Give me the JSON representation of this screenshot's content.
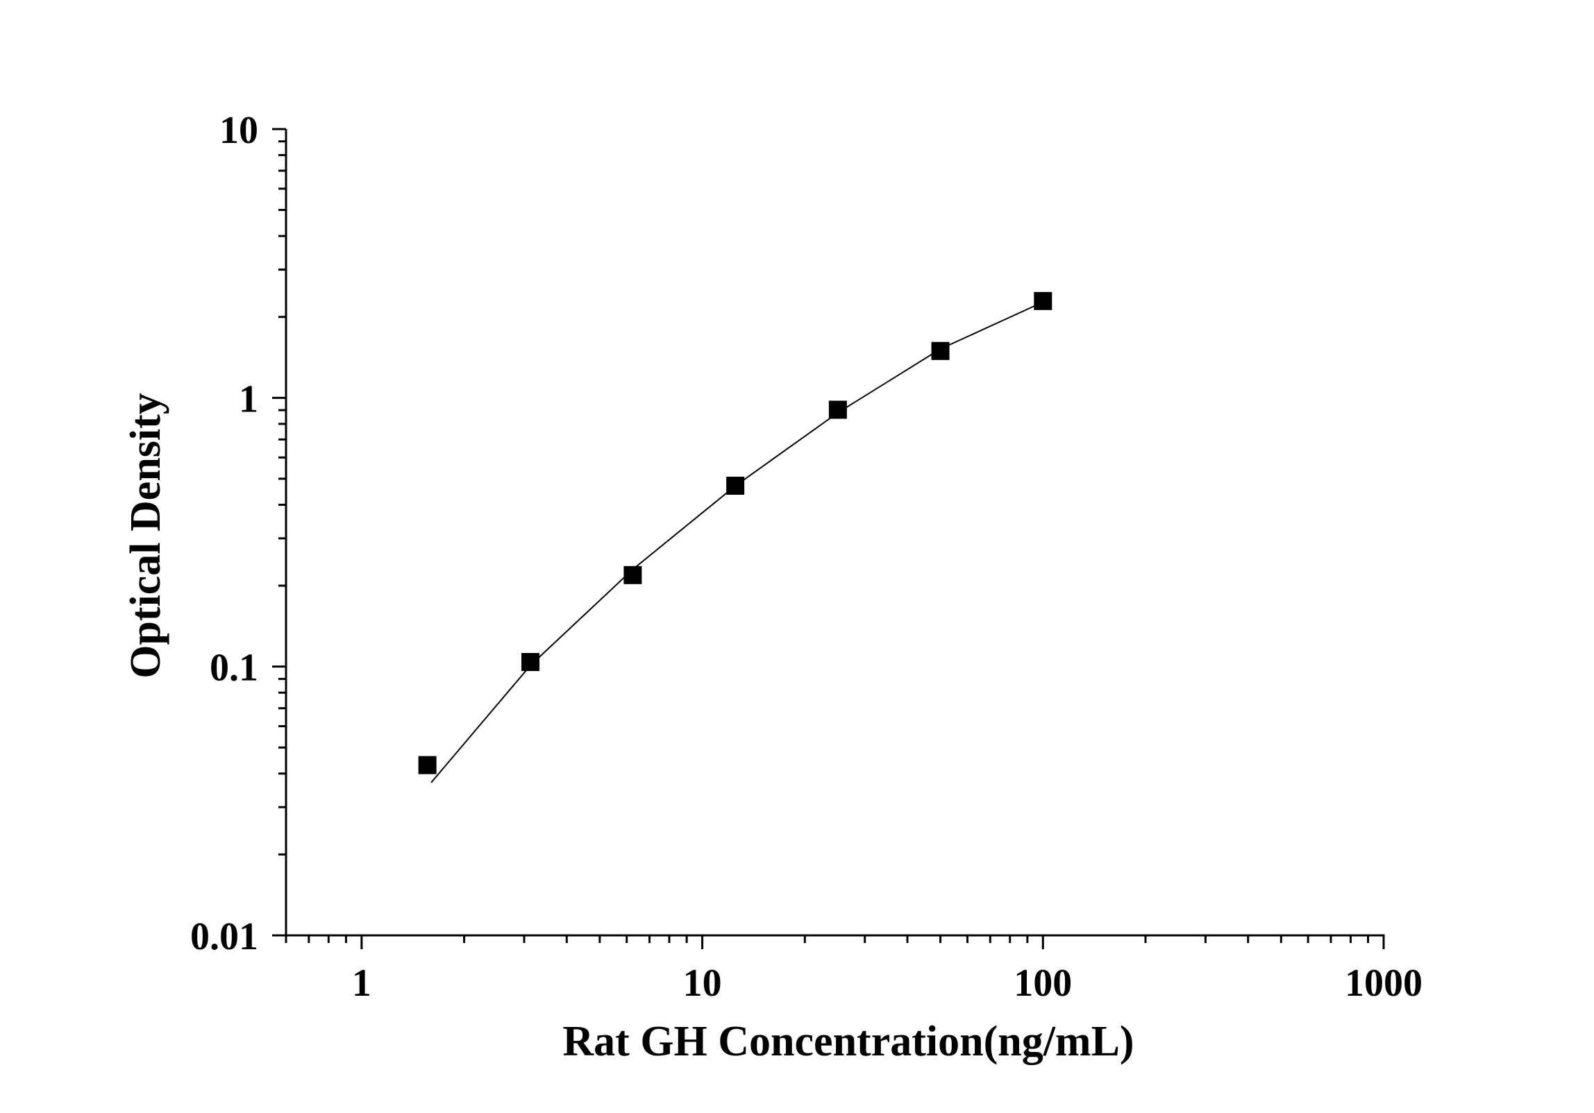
{
  "chart_data": {
    "type": "scatter",
    "title": "",
    "xlabel": "Rat GH Concentration(ng/mL)",
    "ylabel": "Optical Density",
    "x_scale": "log",
    "y_scale": "log",
    "xlim": [
      0.6,
      1000
    ],
    "ylim": [
      0.01,
      10
    ],
    "x_ticks": [
      {
        "value": 1,
        "label": "1"
      },
      {
        "value": 10,
        "label": "10"
      },
      {
        "value": 100,
        "label": "100"
      },
      {
        "value": 1000,
        "label": "1000"
      }
    ],
    "y_ticks": [
      {
        "value": 0.01,
        "label": "0.01"
      },
      {
        "value": 0.1,
        "label": "0.1"
      },
      {
        "value": 1,
        "label": "1"
      },
      {
        "value": 10,
        "label": "10"
      }
    ],
    "grid": false,
    "legend": "none",
    "series": [
      {
        "marker": "square",
        "color": "#000000",
        "points": [
          {
            "x": 1.56,
            "y": 0.043
          },
          {
            "x": 3.13,
            "y": 0.104
          },
          {
            "x": 6.25,
            "y": 0.219
          },
          {
            "x": 12.5,
            "y": 0.471
          },
          {
            "x": 25,
            "y": 0.903
          },
          {
            "x": 50,
            "y": 1.494
          },
          {
            "x": 100,
            "y": 2.292
          }
        ]
      }
    ],
    "fit_curve": {
      "color": "#000000",
      "points": [
        {
          "x": 1.6,
          "y": 0.037
        },
        {
          "x": 3.13,
          "y": 0.101
        },
        {
          "x": 6.25,
          "y": 0.23
        },
        {
          "x": 12.5,
          "y": 0.47
        },
        {
          "x": 25,
          "y": 0.88
        },
        {
          "x": 50,
          "y": 1.52
        },
        {
          "x": 100,
          "y": 2.27
        }
      ]
    }
  }
}
